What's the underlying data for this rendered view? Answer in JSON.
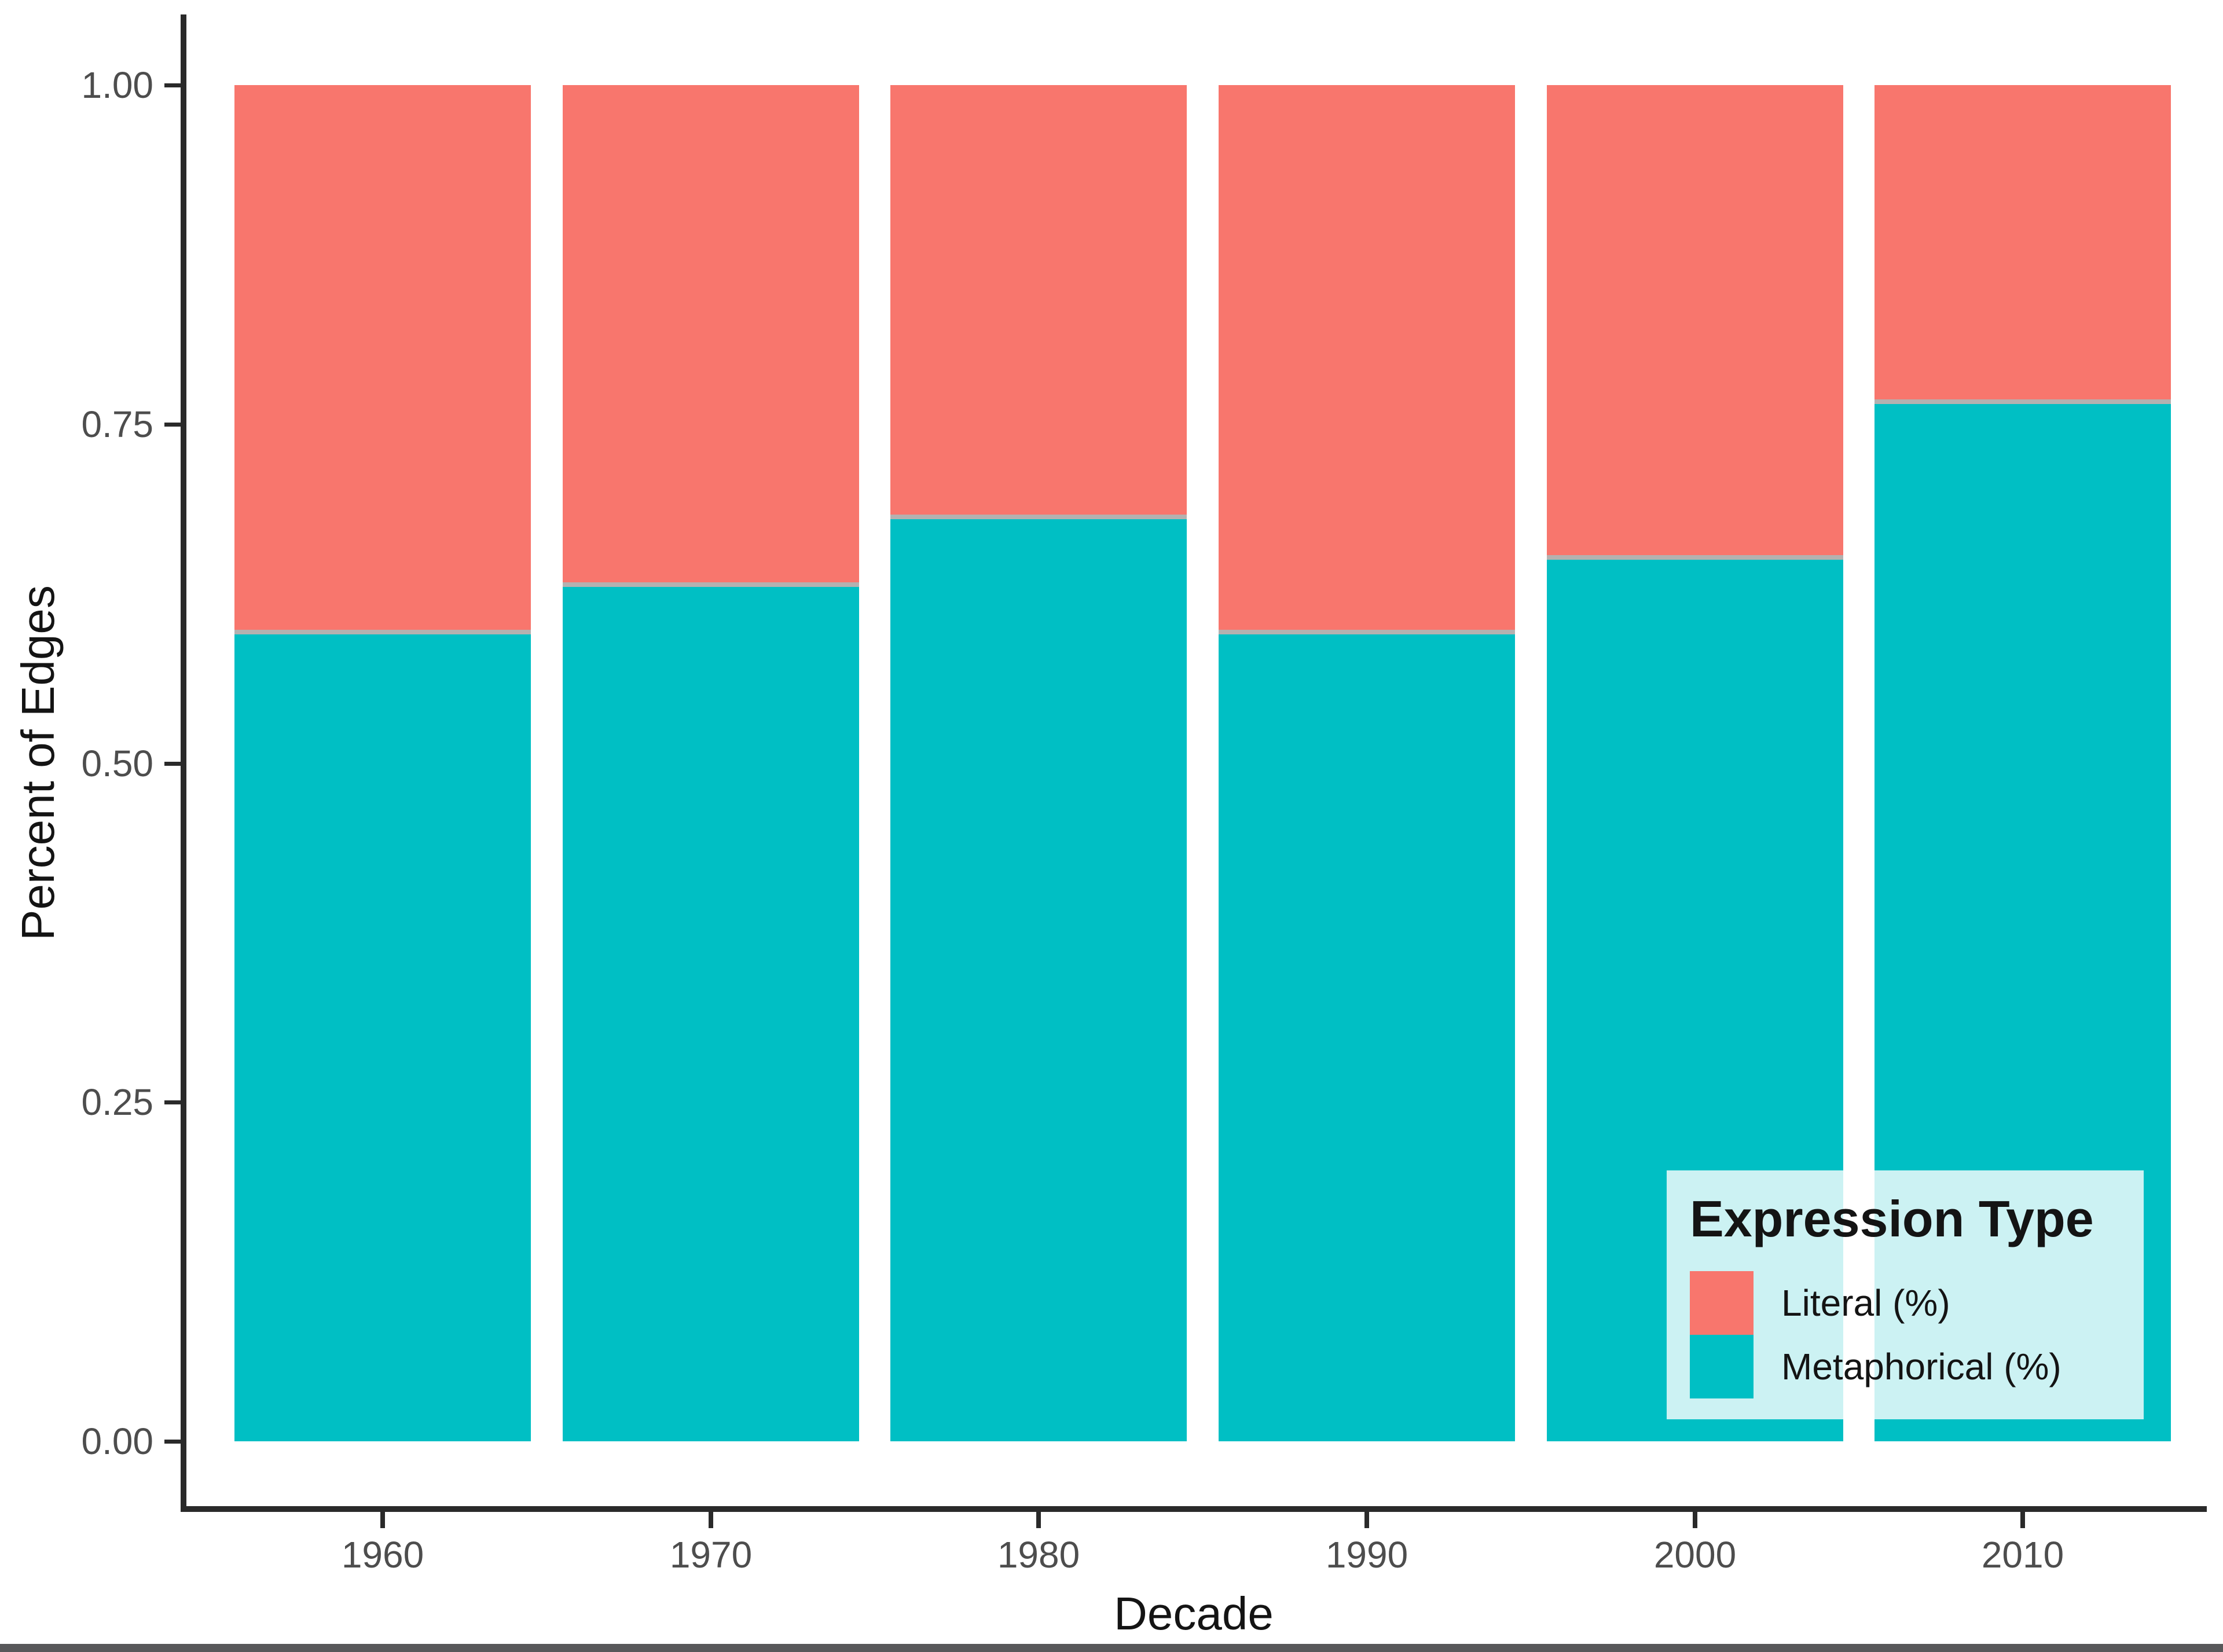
{
  "chart_data": {
    "type": "bar",
    "variant": "stacked-normalized",
    "title": "",
    "xlabel": "Decade",
    "ylabel": "Percent of Edges",
    "categories": [
      "1960",
      "1970",
      "1980",
      "1990",
      "2000",
      "2010"
    ],
    "series": [
      {
        "name": "Literal (%)",
        "color": "#F8766D",
        "values": [
          0.405,
          0.37,
          0.32,
          0.405,
          0.35,
          0.235
        ]
      },
      {
        "name": "Metaphorical (%)",
        "color": "#00BFC4",
        "values": [
          0.595,
          0.63,
          0.68,
          0.595,
          0.65,
          0.765
        ]
      }
    ],
    "ylim": [
      0,
      1
    ],
    "ytick_labels": [
      "1.00",
      "0.75",
      "0.50",
      "0.25",
      "0.00"
    ],
    "ytick_values": [
      1.0,
      0.75,
      0.5,
      0.25,
      0.0
    ],
    "grid": false,
    "bar_totals": [
      1.0,
      1.0,
      1.0,
      1.0,
      1.0,
      1.0
    ],
    "legend_position": "bottom-right-inside-plot"
  },
  "legend": {
    "title": "Expression Type",
    "items": [
      {
        "label": "Literal (%)",
        "color": "#F8766D"
      },
      {
        "label": "Metaphorical (%)",
        "color": "#00BFC4"
      }
    ]
  },
  "colors": {
    "literal": "#F8766D",
    "metaphorical": "#00BFC4",
    "axis_line": "#2a2a2a",
    "tick_text": "#4d4d4d",
    "title_text": "#141414",
    "legend_background": "rgba(255,255,255,0.8)",
    "window_edge": "#58585a"
  }
}
